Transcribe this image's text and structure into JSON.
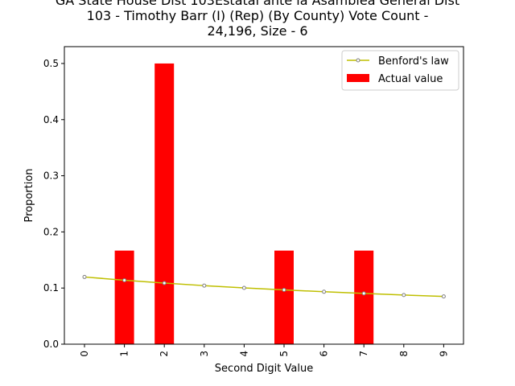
{
  "chart_data": {
    "type": "bar",
    "title": "GA State House Dist 103Estatal ante la Asamblea General Dist\n103 - Timothy Barr (I) (Rep) (By County) Vote Count -\n24,196, Size - 6",
    "xlabel": "Second Digit Value",
    "ylabel": "Proportion",
    "categories": [
      "0",
      "1",
      "2",
      "3",
      "4",
      "5",
      "6",
      "7",
      "8",
      "9"
    ],
    "ylim": [
      0,
      0.53
    ],
    "yticks": [
      "0.0",
      "0.1",
      "0.2",
      "0.3",
      "0.4",
      "0.5"
    ],
    "series": [
      {
        "name": "Actual value",
        "kind": "bar",
        "color": "#ff0000",
        "values": [
          0,
          0.1667,
          0.5,
          0,
          0,
          0.1667,
          0,
          0.1667,
          0,
          0
        ]
      },
      {
        "name": "Benford's law",
        "kind": "line",
        "color": "#bfbf00",
        "values": [
          0.1197,
          0.1139,
          0.1088,
          0.1043,
          0.1003,
          0.0967,
          0.0934,
          0.0904,
          0.0876,
          0.085
        ]
      }
    ],
    "legend_position": "top-right",
    "grid": false
  }
}
